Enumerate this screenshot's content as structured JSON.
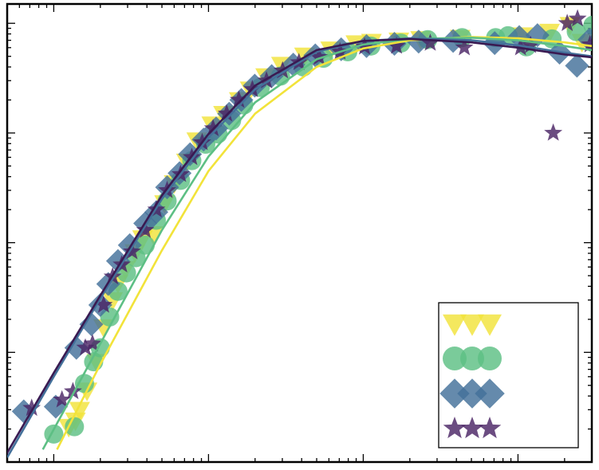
{
  "chart_data": {
    "type": "scatter",
    "x_scale": "log",
    "y_scale": "log",
    "xlim": [
      0.5,
      3000
    ],
    "ylim": [
      1e-05,
      0.15
    ],
    "title": "",
    "xlabel": "",
    "ylabel": "",
    "tick_labels_visible": false,
    "grid": false,
    "legend": {
      "placement": "bottom-right",
      "entries_labeled": false
    },
    "series": [
      {
        "marker": "triangle-down",
        "color": "#f2e33a",
        "points": [
          [
            1.25,
            2.1e-05
          ],
          [
            1.38,
            2.4e-05
          ],
          [
            1.47,
            3e-05
          ],
          [
            1.64,
            4.5e-05
          ],
          [
            1.9,
            8.2e-05
          ],
          [
            2.1,
            0.00017
          ],
          [
            2.4,
            0.0003
          ],
          [
            2.6,
            0.00043
          ],
          [
            2.9,
            0.00058
          ],
          [
            3.35,
            0.00082
          ],
          [
            3.75,
            0.0011
          ],
          [
            4.4,
            0.0012
          ],
          [
            5.2,
            0.0023
          ],
          [
            6.0,
            0.0035
          ],
          [
            7.2,
            0.0055
          ],
          [
            8.4,
            0.0086
          ],
          [
            10.5,
            0.012
          ],
          [
            12.5,
            0.015
          ],
          [
            15.8,
            0.02
          ],
          [
            18.6,
            0.025
          ],
          [
            23.4,
            0.033
          ],
          [
            29.6,
            0.042
          ],
          [
            41.7,
            0.051
          ],
          [
            61.6,
            0.058
          ],
          [
            89.6,
            0.066
          ],
          [
            113,
            0.068
          ],
          [
            170,
            0.07
          ],
          [
            235,
            0.072
          ],
          [
            423,
            0.074
          ],
          [
            1072,
            0.078
          ],
          [
            1600,
            0.084
          ],
          [
            2167,
            0.097
          ],
          [
            2590,
            0.068
          ]
        ]
      },
      {
        "marker": "circle",
        "color": "#5dbf84",
        "points": [
          [
            1.0,
            1.8e-05
          ],
          [
            1.36,
            2.1e-05
          ],
          [
            1.58,
            5.2e-05
          ],
          [
            1.81,
            8.2e-05
          ],
          [
            2.0,
            0.00011
          ],
          [
            2.3,
            0.00021
          ],
          [
            2.6,
            0.00036
          ],
          [
            2.95,
            0.00053
          ],
          [
            3.4,
            0.00073
          ],
          [
            3.9,
            0.00095
          ],
          [
            4.6,
            0.0016
          ],
          [
            5.4,
            0.0024
          ],
          [
            6.6,
            0.0037
          ],
          [
            7.8,
            0.0056
          ],
          [
            9.6,
            0.0079
          ],
          [
            11.5,
            0.0098
          ],
          [
            14.1,
            0.013
          ],
          [
            16.9,
            0.018
          ],
          [
            21.6,
            0.026
          ],
          [
            29.2,
            0.033
          ],
          [
            41.0,
            0.04
          ],
          [
            55.3,
            0.048
          ],
          [
            79.4,
            0.055
          ],
          [
            112,
            0.062
          ],
          [
            175,
            0.066
          ],
          [
            261,
            0.071
          ],
          [
            435,
            0.074
          ],
          [
            717,
            0.074
          ],
          [
            863,
            0.077
          ],
          [
            1134,
            0.061
          ],
          [
            1660,
            0.072
          ],
          [
            2380,
            0.084
          ],
          [
            3050,
            0.096
          ]
        ]
      },
      {
        "marker": "diamond",
        "color": "#43709a",
        "points": [
          [
            0.64,
            2.9e-05
          ],
          [
            1.03,
            3.2e-05
          ],
          [
            1.4,
            0.00011
          ],
          [
            1.75,
            0.00018
          ],
          [
            2.0,
            0.00027
          ],
          [
            2.25,
            0.00042
          ],
          [
            2.6,
            0.00068
          ],
          [
            3.1,
            0.00095
          ],
          [
            3.9,
            0.0015
          ],
          [
            4.6,
            0.0019
          ],
          [
            5.4,
            0.0032
          ],
          [
            6.5,
            0.0043
          ],
          [
            7.6,
            0.0064
          ],
          [
            9.3,
            0.0087
          ],
          [
            11.2,
            0.011
          ],
          [
            13.6,
            0.015
          ],
          [
            16.3,
            0.02
          ],
          [
            19.9,
            0.027
          ],
          [
            25.6,
            0.033
          ],
          [
            35.3,
            0.042
          ],
          [
            49.0,
            0.051
          ],
          [
            72.0,
            0.058
          ],
          [
            105,
            0.062
          ],
          [
            159,
            0.065
          ],
          [
            228,
            0.068
          ],
          [
            381,
            0.069
          ],
          [
            707,
            0.066
          ],
          [
            1019,
            0.075
          ],
          [
            1336,
            0.078
          ],
          [
            1856,
            0.054
          ],
          [
            2405,
            0.041
          ],
          [
            2900,
            0.071
          ]
        ]
      },
      {
        "marker": "star",
        "color": "#4a2565",
        "points": [
          [
            0.72,
            3.1e-05
          ],
          [
            1.13,
            3.7e-05
          ],
          [
            1.33,
            4.4e-05
          ],
          [
            1.6,
            0.00011
          ],
          [
            1.78,
            0.00012
          ],
          [
            2.1,
            0.00027
          ],
          [
            2.4,
            0.00049
          ],
          [
            2.75,
            0.00063
          ],
          [
            3.2,
            0.00083
          ],
          [
            3.9,
            0.0013
          ],
          [
            4.6,
            0.002
          ],
          [
            5.4,
            0.003
          ],
          [
            6.6,
            0.0042
          ],
          [
            7.8,
            0.006
          ],
          [
            9.1,
            0.0082
          ],
          [
            10.7,
            0.011
          ],
          [
            13.1,
            0.015
          ],
          [
            15.7,
            0.02
          ],
          [
            19.2,
            0.025
          ],
          [
            23.7,
            0.03
          ],
          [
            30.1,
            0.037
          ],
          [
            38.4,
            0.044
          ],
          [
            51.8,
            0.049
          ],
          [
            70.8,
            0.055
          ],
          [
            102,
            0.061
          ],
          [
            164,
            0.062
          ],
          [
            271,
            0.066
          ],
          [
            450,
            0.06
          ],
          [
            1039,
            0.06
          ],
          [
            1207,
            0.063
          ],
          [
            1690,
            0.01
          ],
          [
            2080,
            0.1
          ],
          [
            2425,
            0.11
          ],
          [
            2920,
            0.064
          ]
        ]
      }
    ],
    "fit_lines": [
      {
        "color": "#f2e33a",
        "points": [
          [
            1.05,
            1.3e-05
          ],
          [
            2,
            7.8e-05
          ],
          [
            5,
            0.00085
          ],
          [
            10,
            0.0045
          ],
          [
            20,
            0.015
          ],
          [
            50,
            0.04
          ],
          [
            100,
            0.059
          ],
          [
            200,
            0.07
          ],
          [
            500,
            0.075
          ],
          [
            1000,
            0.073
          ],
          [
            2000,
            0.067
          ],
          [
            3000,
            0.062
          ]
        ]
      },
      {
        "color": "#5dbf84",
        "points": [
          [
            0.85,
            1.3e-05
          ],
          [
            2,
            0.00012
          ],
          [
            5,
            0.0013
          ],
          [
            10,
            0.0061
          ],
          [
            20,
            0.019
          ],
          [
            50,
            0.047
          ],
          [
            100,
            0.064
          ],
          [
            200,
            0.072
          ],
          [
            500,
            0.074
          ],
          [
            1000,
            0.07
          ],
          [
            2000,
            0.062
          ],
          [
            3000,
            0.057
          ]
        ]
      },
      {
        "color": "#43709a",
        "points": [
          [
            0.5,
            1.1e-05
          ],
          [
            1,
            6e-05
          ],
          [
            2,
            0.00031
          ],
          [
            5,
            0.0025
          ],
          [
            10,
            0.0091
          ],
          [
            20,
            0.025
          ],
          [
            50,
            0.055
          ],
          [
            100,
            0.069
          ],
          [
            200,
            0.073
          ],
          [
            500,
            0.07
          ],
          [
            1000,
            0.063
          ],
          [
            2000,
            0.054
          ],
          [
            3000,
            0.05
          ]
        ]
      },
      {
        "color": "#3a1a52",
        "points": [
          [
            0.48,
            1.1e-05
          ],
          [
            1,
            6.5e-05
          ],
          [
            2,
            0.00033
          ],
          [
            5,
            0.0027
          ],
          [
            10,
            0.0098
          ],
          [
            20,
            0.027
          ],
          [
            50,
            0.057
          ],
          [
            100,
            0.069
          ],
          [
            200,
            0.072
          ],
          [
            500,
            0.067
          ],
          [
            1000,
            0.06
          ],
          [
            2000,
            0.052
          ],
          [
            3000,
            0.049
          ]
        ]
      }
    ],
    "legend_marker_colors": [
      "#f2e33a",
      "#5dbf84",
      "#43709a",
      "#4a2565"
    ],
    "legend_marker_shapes": [
      "triangle-down",
      "circle",
      "diamond",
      "star"
    ]
  }
}
